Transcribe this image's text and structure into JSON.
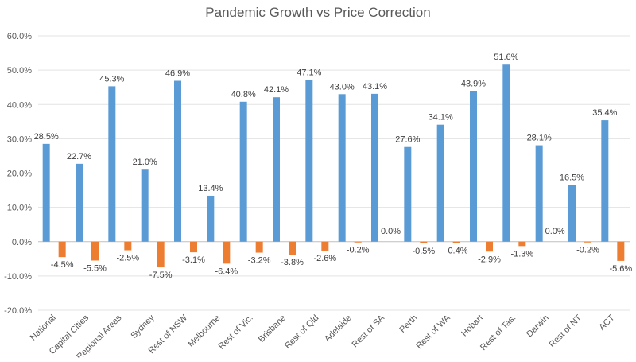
{
  "chart_data": {
    "type": "bar",
    "title": "Pandemic Growth vs Price Correction",
    "xlabel": "",
    "ylabel": "",
    "ylim": [
      -0.2,
      0.6
    ],
    "yticks": [
      -0.2,
      -0.1,
      0.0,
      0.1,
      0.2,
      0.3,
      0.4,
      0.5,
      0.6
    ],
    "ytick_labels": [
      "-20.0%",
      "-10.0%",
      "0.0%",
      "10.0%",
      "20.0%",
      "30.0%",
      "40.0%",
      "50.0%",
      "60.0%"
    ],
    "grid": true,
    "legend": "none",
    "categories": [
      "National",
      "Capital Cities",
      "Regional Areas",
      "Sydney",
      "Rest of NSW",
      "Melbourne",
      "Rest of Vic.",
      "Brisbane",
      "Rest of Qld",
      "Adelaide",
      "Rest of SA",
      "Perth",
      "Rest of WA",
      "Hobart",
      "Rest of Tas.",
      "Darwin",
      "Rest of NT",
      "ACT"
    ],
    "series": [
      {
        "color": "#5B9BD5",
        "values": [
          0.285,
          0.227,
          0.453,
          0.21,
          0.469,
          0.134,
          0.408,
          0.421,
          0.471,
          0.43,
          0.431,
          0.276,
          0.341,
          0.439,
          0.516,
          0.281,
          0.165,
          0.354
        ],
        "labels": [
          "28.5%",
          "22.7%",
          "45.3%",
          "21.0%",
          "46.9%",
          "13.4%",
          "40.8%",
          "42.1%",
          "47.1%",
          "43.0%",
          "43.1%",
          "27.6%",
          "34.1%",
          "43.9%",
          "51.6%",
          "28.1%",
          "16.5%",
          "35.4%"
        ]
      },
      {
        "color": "#ED7D31",
        "values": [
          -0.045,
          -0.055,
          -0.025,
          -0.075,
          -0.031,
          -0.064,
          -0.032,
          -0.038,
          -0.026,
          -0.002,
          0.0,
          -0.005,
          -0.004,
          -0.029,
          -0.013,
          0.0,
          -0.002,
          -0.056
        ],
        "labels": [
          "-4.5%",
          "-5.5%",
          "-2.5%",
          "-7.5%",
          "-3.1%",
          "-6.4%",
          "-3.2%",
          "-3.8%",
          "-2.6%",
          "-0.2%",
          "0.0%",
          "-0.5%",
          "-0.4%",
          "-2.9%",
          "-1.3%",
          "0.0%",
          "-0.2%",
          "-5.6%"
        ]
      }
    ]
  }
}
